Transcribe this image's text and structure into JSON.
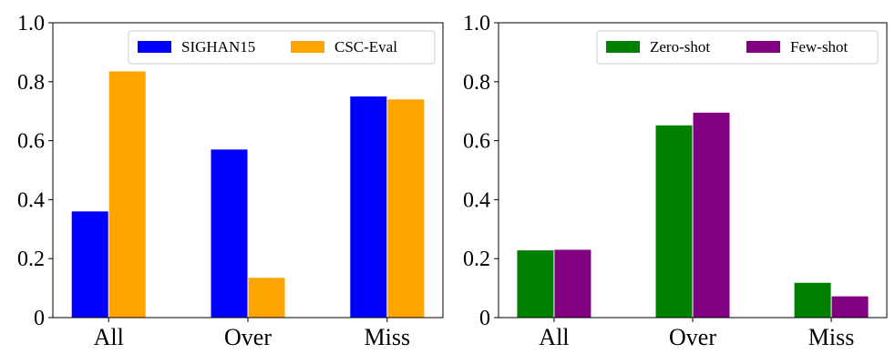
{
  "chart_data": [
    {
      "type": "bar",
      "categories": [
        "All",
        "Over",
        "Miss"
      ],
      "ylim": [
        0,
        1.0
      ],
      "yticks": [
        "0",
        "0.2",
        "0.4",
        "0.6",
        "0.8",
        "1.0"
      ],
      "grid": false,
      "legend_placement": "top-right",
      "series": [
        {
          "name": "SIGHAN15",
          "color": "#0000ff",
          "values": [
            0.36,
            0.57,
            0.75
          ]
        },
        {
          "name": "CSC-Eval",
          "color": "#ffa500",
          "values": [
            0.835,
            0.135,
            0.74
          ]
        }
      ]
    },
    {
      "type": "bar",
      "categories": [
        "All",
        "Over",
        "Miss"
      ],
      "ylim": [
        0,
        1.0
      ],
      "yticks": [
        "0",
        "0.2",
        "0.4",
        "0.6",
        "0.8",
        "1.0"
      ],
      "grid": false,
      "legend_placement": "top-right",
      "series": [
        {
          "name": "Zero-shot",
          "color": "#008000",
          "values": [
            0.228,
            0.652,
            0.118
          ]
        },
        {
          "name": "Few-shot",
          "color": "#800080",
          "values": [
            0.23,
            0.695,
            0.072
          ]
        }
      ]
    }
  ]
}
